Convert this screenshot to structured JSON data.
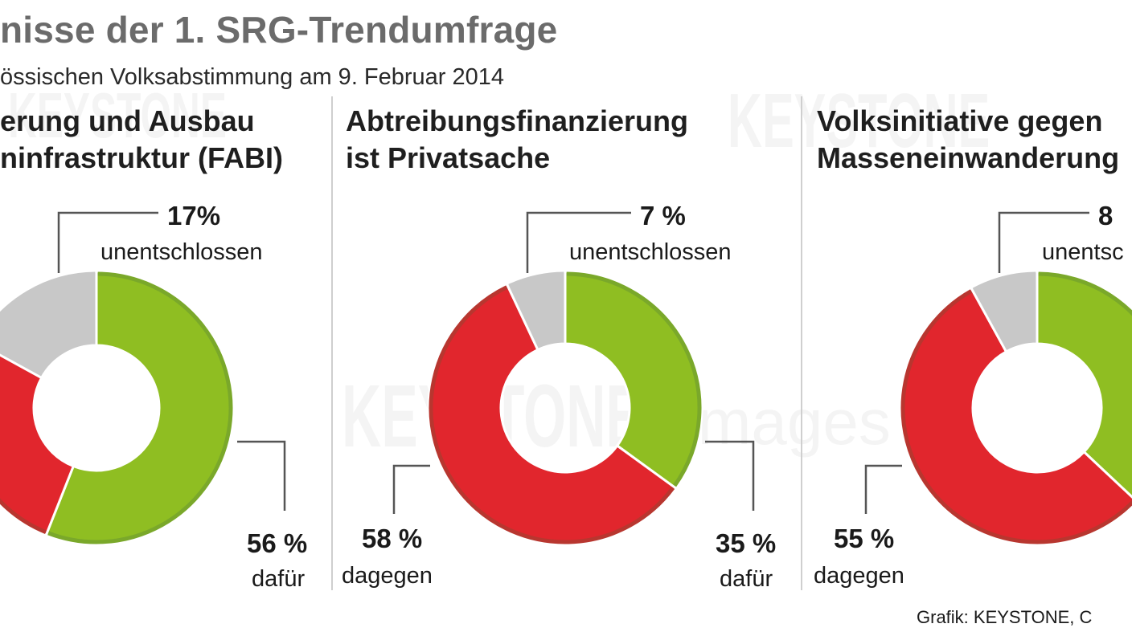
{
  "header": {
    "title": "nisse der 1. SRG-Trendumfrage",
    "subtitle": "össischen Volksabstimmung am 9. Februar 2014"
  },
  "watermark": {
    "brand": "KEYSTONE",
    "sub": "images"
  },
  "credit": "Grafik: KEYSTONE, C",
  "colors": {
    "dafuer": "#8fbe22",
    "dagegen": "#e1262d",
    "unentschlossen": "#c8c8c8",
    "leader": "#555555"
  },
  "chart_data": [
    {
      "type": "pie",
      "title_lines": [
        "erung und Ausbau",
        "ninfrastruktur (FABI)"
      ],
      "slices": [
        {
          "key": "dafuer",
          "value": 56,
          "pct_text": "56 %",
          "label": "dafür"
        },
        {
          "key": "dagegen",
          "value": 27,
          "pct_text": "",
          "label": ""
        },
        {
          "key": "unentschlossen",
          "value": 17,
          "pct_text": "17%",
          "label": "unentschlossen"
        }
      ]
    },
    {
      "type": "pie",
      "title_lines": [
        "Abtreibungsfinanzierung",
        "ist Privatsache"
      ],
      "slices": [
        {
          "key": "dafuer",
          "value": 35,
          "pct_text": "35 %",
          "label": "dafür"
        },
        {
          "key": "dagegen",
          "value": 58,
          "pct_text": "58 %",
          "label": "dagegen"
        },
        {
          "key": "unentschlossen",
          "value": 7,
          "pct_text": "7 %",
          "label": "unentschlossen"
        }
      ]
    },
    {
      "type": "pie",
      "title_lines": [
        "Volksinitiative gegen",
        "Masseneinwanderung"
      ],
      "slices": [
        {
          "key": "dafuer",
          "value": 37,
          "pct_text": "",
          "label": ""
        },
        {
          "key": "dagegen",
          "value": 55,
          "pct_text": "55 %",
          "label": "dagegen"
        },
        {
          "key": "unentschlossen",
          "value": 8,
          "pct_text": "8",
          "label": "unentsc"
        }
      ]
    }
  ]
}
